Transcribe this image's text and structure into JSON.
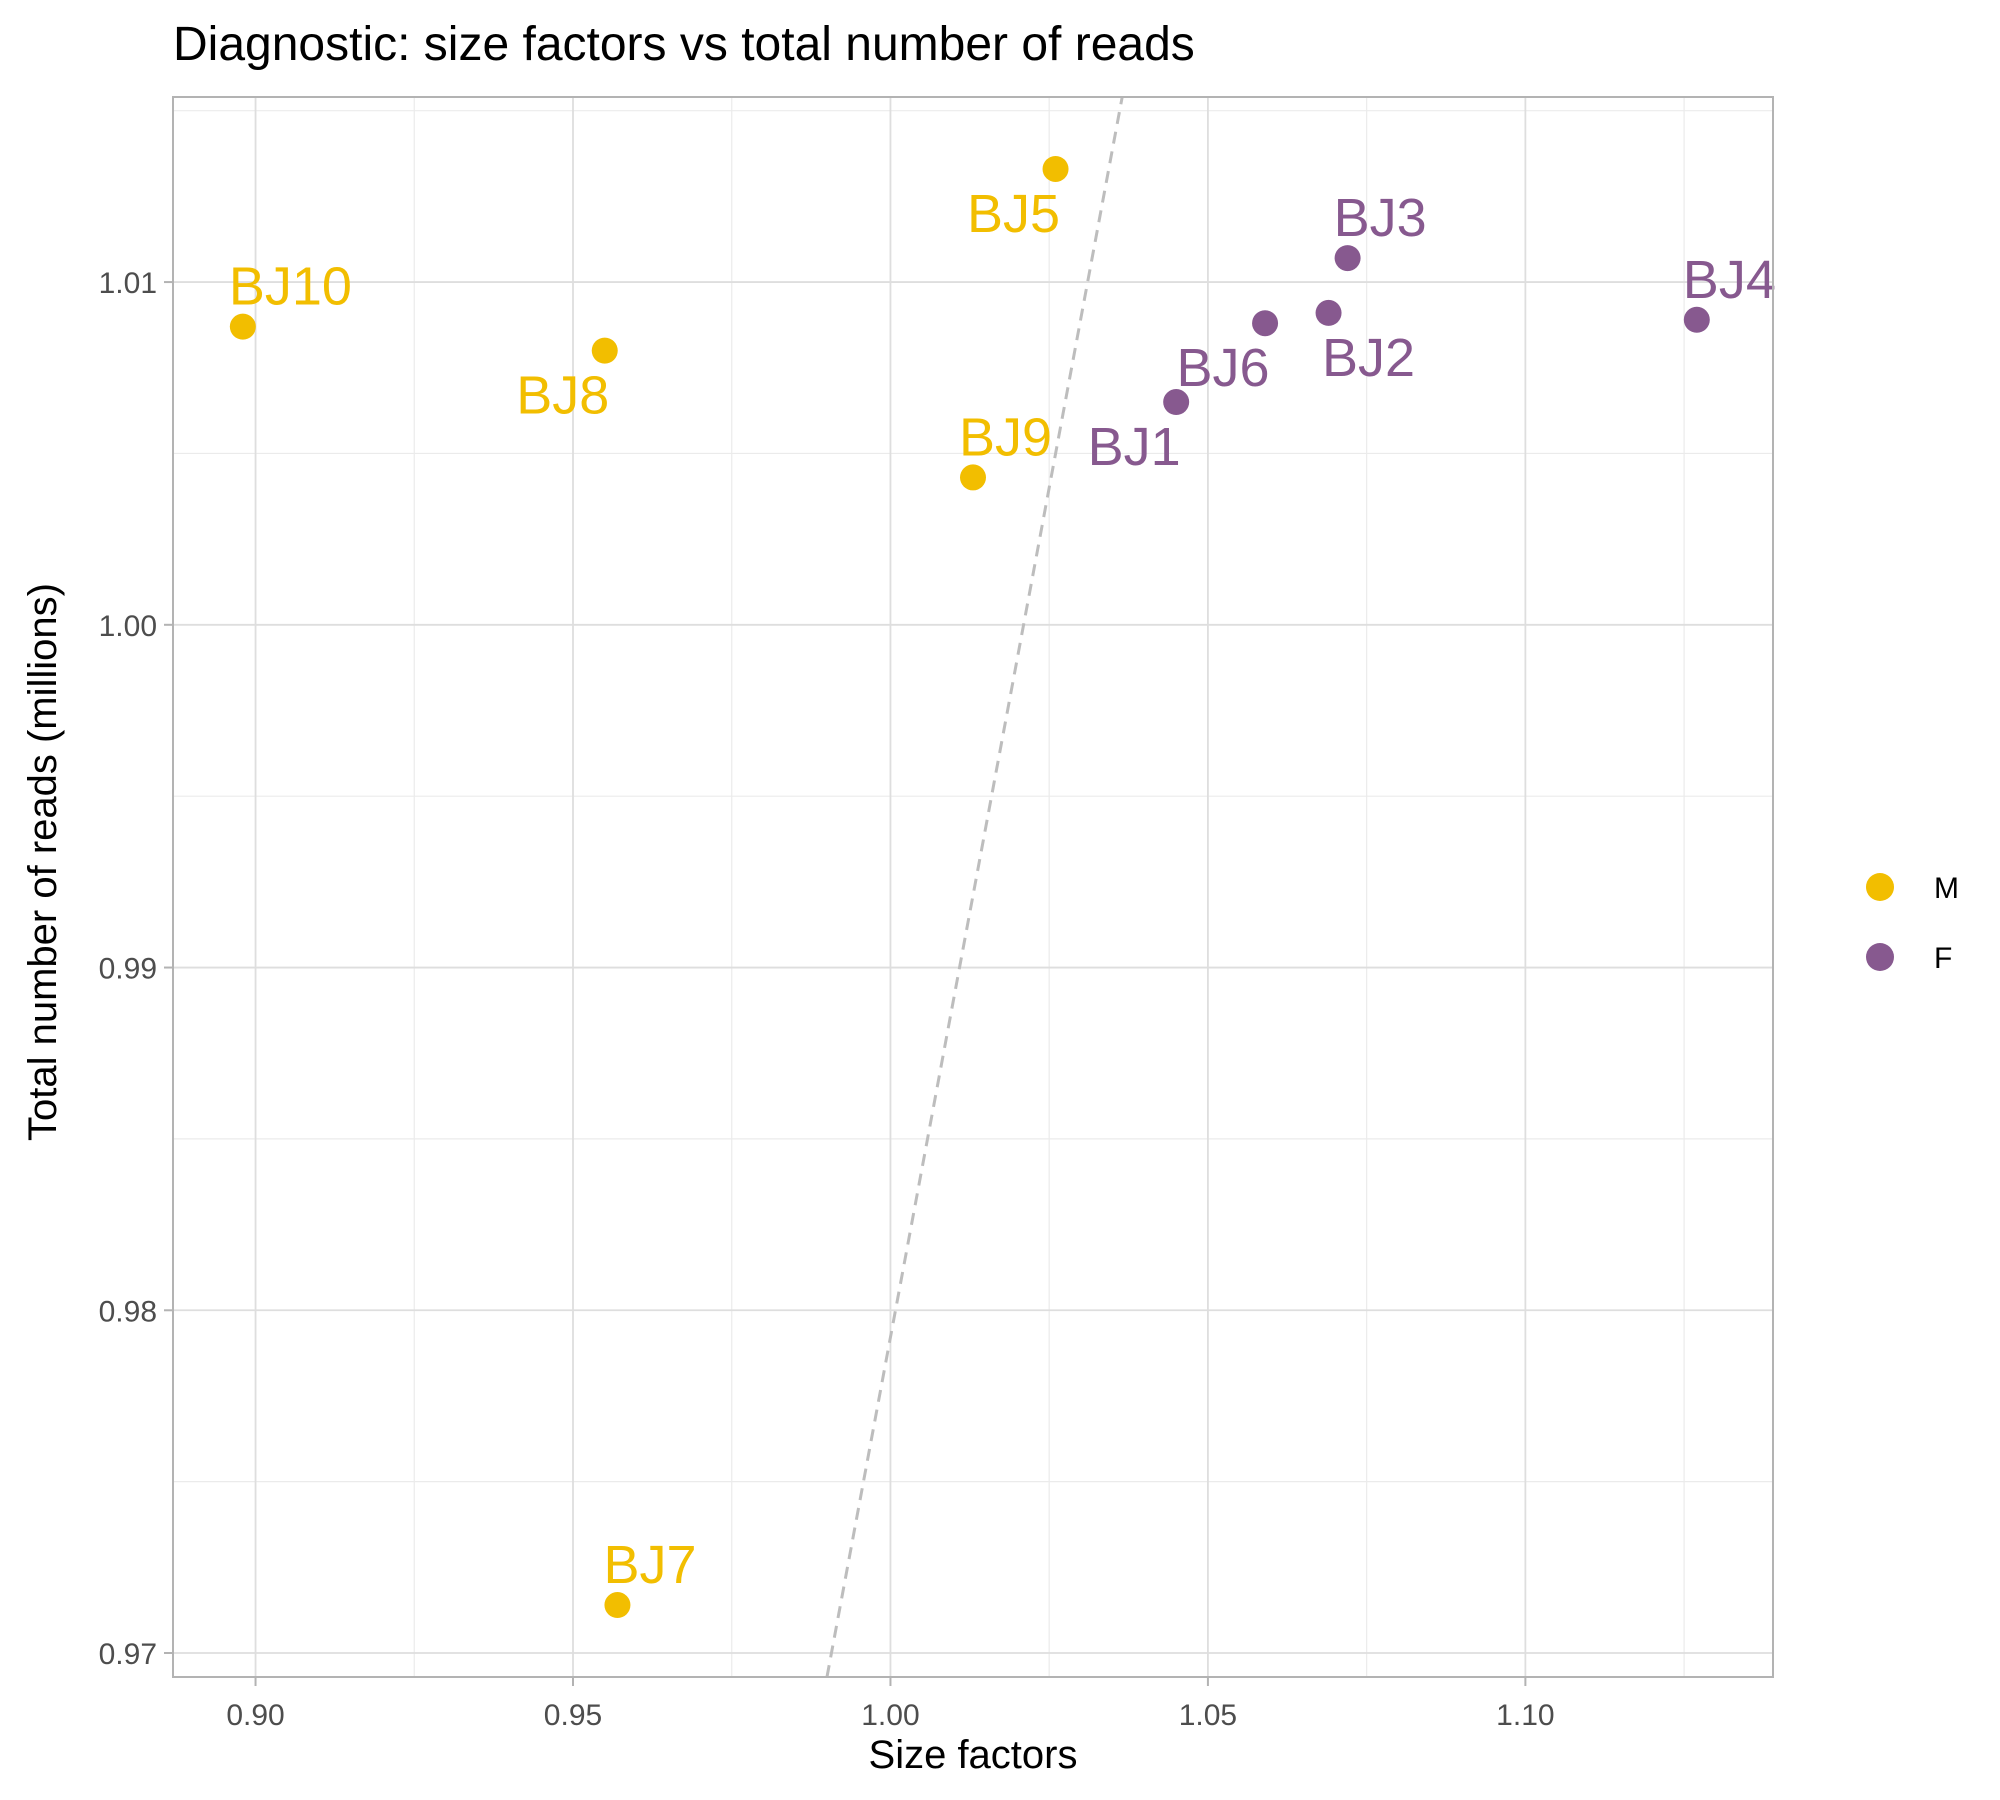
{
  "chart_data": {
    "type": "scatter",
    "title": "Diagnostic: size factors vs total number of reads",
    "xlabel": "Size factors",
    "ylabel": "Total number of reads (millions)",
    "xlim": [
      0.887,
      1.139
    ],
    "ylim": [
      0.9693,
      1.0154
    ],
    "x_ticks": [
      0.9,
      0.95,
      1.0,
      1.05,
      1.1
    ],
    "x_tick_labels": [
      "0.90",
      "0.95",
      "1.00",
      "1.05",
      "1.10"
    ],
    "y_ticks": [
      0.97,
      0.98,
      0.99,
      1.0,
      1.01
    ],
    "y_tick_labels": [
      "0.97",
      "0.98",
      "0.99",
      "1.00",
      "1.01"
    ],
    "grid": true,
    "reference_line": {
      "style": "dashed",
      "color": "#bdbdbd",
      "points": [
        [
          0.99,
          0.9693
        ],
        [
          1.0365,
          1.0154
        ]
      ]
    },
    "legend": {
      "position": "right",
      "items": [
        {
          "label": "M",
          "color": "#F2BE00"
        },
        {
          "label": "F",
          "color": "#87598F"
        }
      ]
    },
    "series": [
      {
        "name": "M",
        "color": "#F2BE00",
        "points": [
          {
            "label": "BJ10",
            "x": 0.898,
            "y": 1.0087,
            "label_pos": "above"
          },
          {
            "label": "BJ8",
            "x": 0.955,
            "y": 1.008,
            "label_pos": "below-left"
          },
          {
            "label": "BJ5",
            "x": 1.026,
            "y": 1.0133,
            "label_pos": "below-left"
          },
          {
            "label": "BJ9",
            "x": 1.013,
            "y": 1.0043,
            "label_pos": "above"
          },
          {
            "label": "BJ7",
            "x": 0.957,
            "y": 0.9714,
            "label_pos": "above"
          }
        ]
      },
      {
        "name": "F",
        "color": "#87598F",
        "points": [
          {
            "label": "BJ1",
            "x": 1.045,
            "y": 1.0065,
            "label_pos": "below-left"
          },
          {
            "label": "BJ6",
            "x": 1.059,
            "y": 1.0088,
            "label_pos": "below-left"
          },
          {
            "label": "BJ2",
            "x": 1.069,
            "y": 1.0091,
            "label_pos": "below"
          },
          {
            "label": "BJ3",
            "x": 1.072,
            "y": 1.0107,
            "label_pos": "above"
          },
          {
            "label": "BJ4",
            "x": 1.127,
            "y": 1.0089,
            "label_pos": "above"
          }
        ]
      }
    ]
  }
}
